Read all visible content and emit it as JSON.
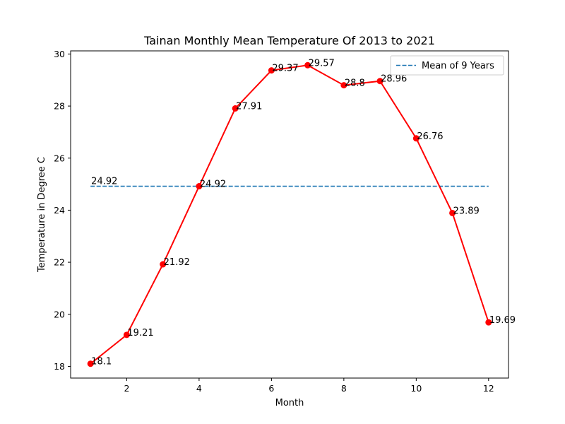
{
  "chart_data": {
    "type": "line",
    "title": "Tainan Monthly Mean Temperature Of 2013 to 2021",
    "xlabel": "Month",
    "ylabel": "Temperature in Degree C",
    "x": [
      1,
      2,
      3,
      4,
      5,
      6,
      7,
      8,
      9,
      10,
      11,
      12
    ],
    "xticks": [
      2,
      4,
      6,
      8,
      10,
      12
    ],
    "yticks": [
      18,
      20,
      22,
      24,
      26,
      28,
      30
    ],
    "xlim": [
      0.45,
      12.55
    ],
    "ylim": [
      17.55,
      30.12
    ],
    "series": [
      {
        "values": [
          18.1,
          19.21,
          21.92,
          24.92,
          27.91,
          29.37,
          29.57,
          28.8,
          28.96,
          26.76,
          23.89,
          19.69
        ],
        "labels": [
          "18.1",
          "19.21",
          "21.92",
          "24.92",
          "27.91",
          "29.37",
          "29.57",
          "28.8",
          "28.96",
          "26.76",
          "23.89",
          "19.69"
        ],
        "color": "#ff0000",
        "marker": "circle"
      }
    ],
    "mean_line": {
      "name": "Mean of 9 Years",
      "value": 24.92,
      "label": "24.92",
      "color": "#1f77b4",
      "style": "dashed"
    },
    "legend": {
      "position": "top-right"
    },
    "grid": false
  }
}
